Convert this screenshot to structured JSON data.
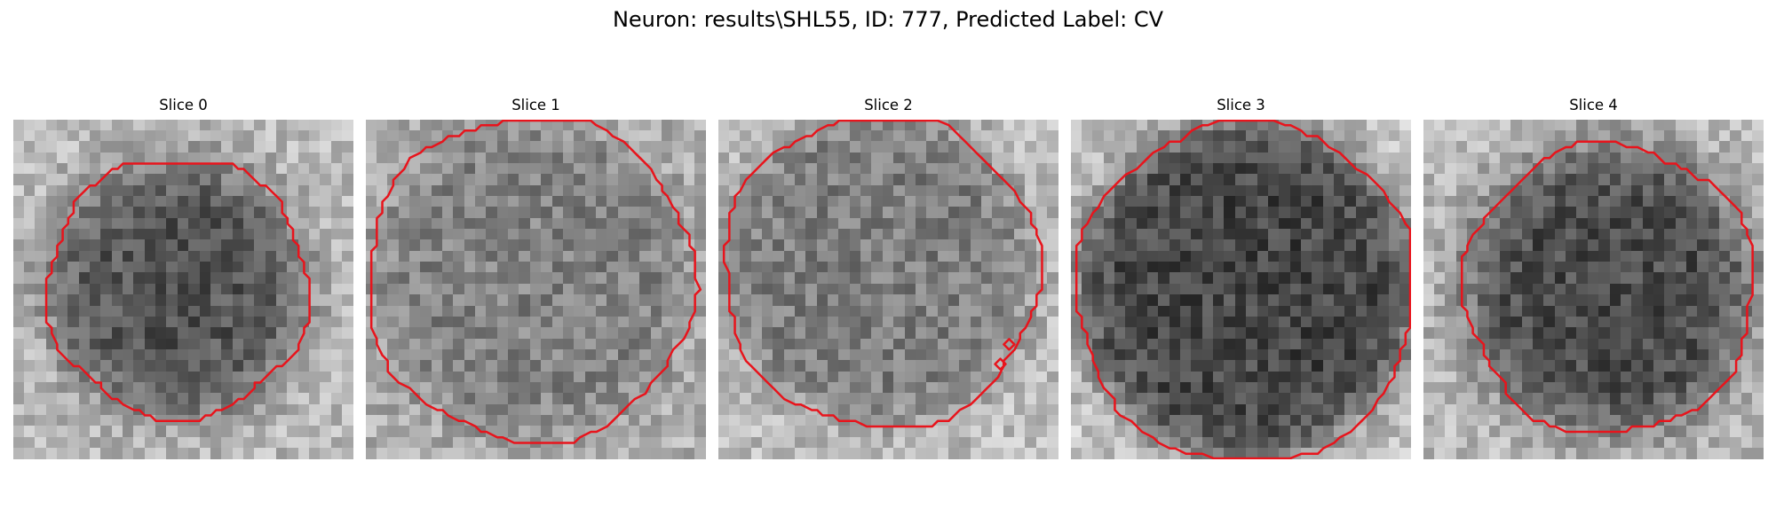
{
  "figure": {
    "title": "Neuron: results\\SHL55, ID: 777, Predicted Label: CV"
  },
  "panels": [
    {
      "title": "Slice 0"
    },
    {
      "title": "Slice 1"
    },
    {
      "title": "Slice 2"
    },
    {
      "title": "Slice 3"
    },
    {
      "title": "Slice 4"
    }
  ],
  "contour_color": "#e8141c",
  "colormap": "gray"
}
